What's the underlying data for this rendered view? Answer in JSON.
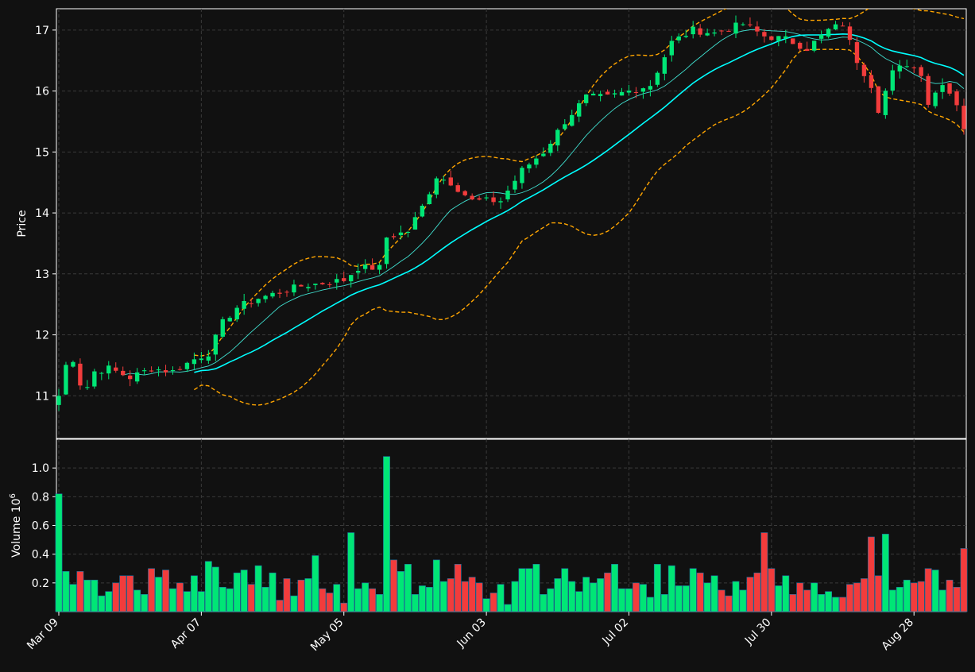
{
  "chart_data": [
    {
      "type": "candlestick",
      "ylabel": "Price",
      "ylim": [
        10.3,
        17.35
      ],
      "yticks": [
        11,
        12,
        13,
        14,
        15,
        16,
        17
      ],
      "x_tick_labels": [
        "Mar 09",
        "Apr 07",
        "May 05",
        "Jun 03",
        "Jul 02",
        "Jul 30",
        "Aug 28"
      ],
      "x_tick_index": [
        0,
        20,
        40,
        60,
        80,
        100,
        120
      ],
      "grid": true,
      "num_sessions": 128,
      "up_color": "#00e676",
      "down_color": "#f23c3c",
      "ma_colors": {
        "fast": "#40e0d0",
        "slow": "#00ffff"
      },
      "band_color": "#ffa500",
      "close_anchors": [
        [
          0,
          11.0
        ],
        [
          1,
          11.5
        ],
        [
          2,
          11.6
        ],
        [
          3,
          11.2
        ],
        [
          4,
          11.15
        ],
        [
          5,
          11.4
        ],
        [
          7,
          11.45
        ],
        [
          10,
          11.3
        ],
        [
          13,
          11.45
        ],
        [
          16,
          11.4
        ],
        [
          19,
          11.6
        ],
        [
          21,
          11.7
        ],
        [
          23,
          12.2
        ],
        [
          25,
          12.45
        ],
        [
          28,
          12.6
        ],
        [
          31,
          12.7
        ],
        [
          34,
          12.8
        ],
        [
          37,
          12.85
        ],
        [
          40,
          12.9
        ],
        [
          42,
          13.1
        ],
        [
          45,
          13.1
        ],
        [
          46,
          13.6
        ],
        [
          49,
          13.7
        ],
        [
          51,
          14.1
        ],
        [
          53,
          14.6
        ],
        [
          55,
          14.5
        ],
        [
          58,
          14.2
        ],
        [
          62,
          14.2
        ],
        [
          65,
          14.7
        ],
        [
          68,
          15.0
        ],
        [
          71,
          15.5
        ],
        [
          74,
          15.9
        ],
        [
          77,
          15.9
        ],
        [
          80,
          16.0
        ],
        [
          83,
          16.1
        ],
        [
          86,
          16.8
        ],
        [
          89,
          17.0
        ],
        [
          92,
          16.95
        ],
        [
          96,
          17.1
        ],
        [
          99,
          16.9
        ],
        [
          102,
          16.85
        ],
        [
          105,
          16.7
        ],
        [
          108,
          17.0
        ],
        [
          110,
          17.1
        ],
        [
          112,
          16.5
        ],
        [
          114,
          16.1
        ],
        [
          115,
          15.7
        ],
        [
          117,
          16.3
        ],
        [
          119,
          16.45
        ],
        [
          121,
          16.3
        ],
        [
          122,
          15.8
        ],
        [
          124,
          16.15
        ],
        [
          126,
          15.8
        ],
        [
          127,
          15.4
        ]
      ]
    },
    {
      "type": "bar",
      "ylabel": "Volume",
      "yunit": "10^6",
      "ylim": [
        0.0,
        1.2
      ],
      "yticks": [
        0.2,
        0.4,
        0.6,
        0.8,
        1.0
      ],
      "grid": true,
      "series": [
        {
          "values": [
            0.82,
            0.28,
            0.19,
            0.28,
            0.22,
            0.22,
            0.11,
            0.14,
            0.2,
            0.25,
            0.25,
            0.15,
            0.12,
            0.3,
            0.24,
            0.29,
            0.16,
            0.2,
            0.14,
            0.25,
            0.14,
            0.35,
            0.31,
            0.17,
            0.16,
            0.27,
            0.29,
            0.19,
            0.32,
            0.17,
            0.27,
            0.08,
            0.23,
            0.11,
            0.22,
            0.23,
            0.39,
            0.16,
            0.13,
            0.19,
            0.06,
            0.55,
            0.16,
            0.2,
            0.16,
            0.12,
            1.08,
            0.36,
            0.28,
            0.33,
            0.12,
            0.18,
            0.17,
            0.36,
            0.21,
            0.23,
            0.33,
            0.21,
            0.24,
            0.2,
            0.09,
            0.13,
            0.19,
            0.05,
            0.21,
            0.3,
            0.3,
            0.33,
            0.12,
            0.16,
            0.23,
            0.3,
            0.21,
            0.14,
            0.24,
            0.2,
            0.23,
            0.27,
            0.33,
            0.16,
            0.16,
            0.2,
            0.19,
            0.1,
            0.33,
            0.12,
            0.32,
            0.18,
            0.18,
            0.3,
            0.27,
            0.2,
            0.25,
            0.15,
            0.11,
            0.21,
            0.15,
            0.24,
            0.27,
            0.55,
            0.3,
            0.18,
            0.25,
            0.12,
            0.2,
            0.15,
            0.2,
            0.12,
            0.14,
            0.1,
            0.1,
            0.19,
            0.2,
            0.23,
            0.52,
            0.25,
            0.54,
            0.15,
            0.17,
            0.22,
            0.2,
            0.21,
            0.3,
            0.29,
            0.15,
            0.22,
            0.17,
            0.44
          ]
        }
      ]
    }
  ]
}
